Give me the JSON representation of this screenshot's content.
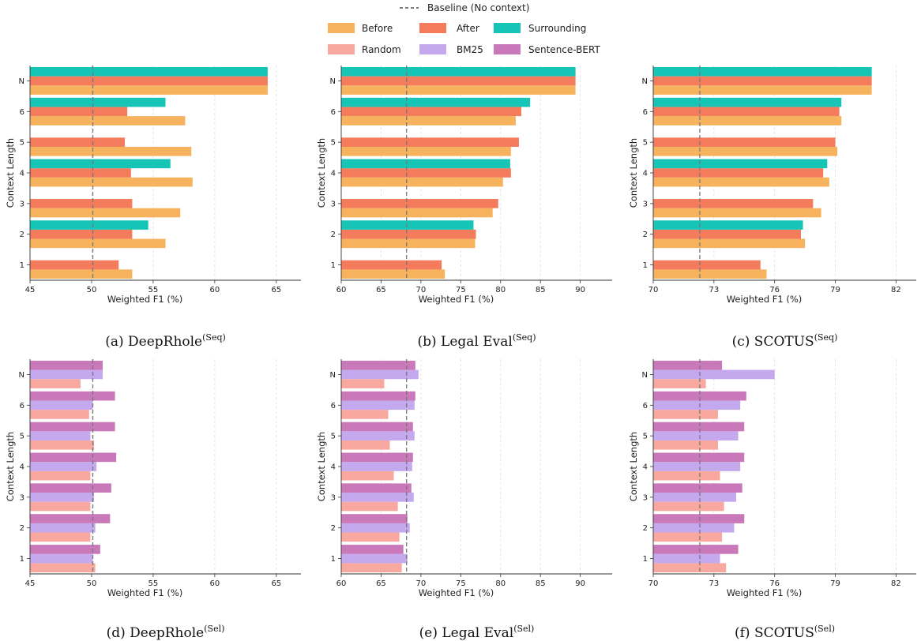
{
  "colors": {
    "before": "#F6B25C",
    "after": "#F47B5C",
    "surrounding": "#16C5B6",
    "random": "#F9A8A0",
    "bm25": "#C4A9EE",
    "sentence_bert": "#C978B9",
    "baseline": "#777777",
    "grid": "#dddddd"
  },
  "legend": {
    "baseline_label": "Baseline (No context)",
    "items": [
      {
        "key": "before",
        "label": "Before"
      },
      {
        "key": "after",
        "label": "After"
      },
      {
        "key": "surrounding",
        "label": "Surrounding"
      },
      {
        "key": "random",
        "label": "Random"
      },
      {
        "key": "bm25",
        "label": "BM25"
      },
      {
        "key": "sentence_bert",
        "label": "Sentence-BERT"
      }
    ]
  },
  "chart_data": [
    {
      "type": "bar",
      "orientation": "horizontal",
      "caption": "(a) DeepRhole",
      "caption_sup": "(Seq)",
      "xlabel": "Weighted F1 (%)",
      "ylabel": "Context Length",
      "xlim": [
        45,
        67
      ],
      "xticks": [
        45,
        50,
        55,
        60,
        65
      ],
      "baseline": 50.1,
      "categories": [
        "1",
        "2",
        "3",
        "4",
        "5",
        "6",
        "N"
      ],
      "series": [
        {
          "key": "before",
          "name": "Before",
          "values": [
            53.3,
            56.0,
            57.2,
            58.2,
            58.1,
            57.6,
            64.3
          ]
        },
        {
          "key": "after",
          "name": "After",
          "values": [
            52.2,
            53.3,
            53.3,
            53.2,
            52.7,
            52.9,
            64.3
          ]
        },
        {
          "key": "surrounding",
          "name": "Surrounding",
          "values": [
            null,
            54.6,
            null,
            56.4,
            null,
            56.0,
            64.3
          ]
        }
      ]
    },
    {
      "type": "bar",
      "orientation": "horizontal",
      "caption": "(b) Legal Eval",
      "caption_sup": "(Seq)",
      "xlabel": "Weighted F1 (%)",
      "ylabel": "Context Length",
      "xlim": [
        60,
        94
      ],
      "xticks": [
        60,
        65,
        70,
        75,
        80,
        85,
        90
      ],
      "baseline": 68.2,
      "categories": [
        "1",
        "2",
        "3",
        "4",
        "5",
        "6",
        "N"
      ],
      "series": [
        {
          "key": "before",
          "name": "Before",
          "values": [
            73.0,
            76.8,
            79.0,
            80.3,
            81.3,
            81.9,
            89.4
          ]
        },
        {
          "key": "after",
          "name": "After",
          "values": [
            72.6,
            76.9,
            79.7,
            81.3,
            82.3,
            82.6,
            89.4
          ]
        },
        {
          "key": "surrounding",
          "name": "Surrounding",
          "values": [
            null,
            76.6,
            null,
            81.2,
            null,
            83.7,
            89.4
          ]
        }
      ]
    },
    {
      "type": "bar",
      "orientation": "horizontal",
      "caption": "(c) SCOTUS",
      "caption_sup": "(Seq)",
      "xlabel": "Weighted F1 (%)",
      "ylabel": "Context Length",
      "xlim": [
        70,
        83
      ],
      "xticks": [
        70,
        73,
        76,
        79,
        82
      ],
      "baseline": 72.3,
      "categories": [
        "1",
        "2",
        "3",
        "4",
        "5",
        "6",
        "N"
      ],
      "series": [
        {
          "key": "before",
          "name": "Before",
          "values": [
            75.6,
            77.5,
            78.3,
            78.7,
            79.1,
            79.3,
            80.8
          ]
        },
        {
          "key": "after",
          "name": "After",
          "values": [
            75.3,
            77.3,
            77.9,
            78.4,
            79.0,
            79.2,
            80.8
          ]
        },
        {
          "key": "surrounding",
          "name": "Surrounding",
          "values": [
            null,
            77.4,
            null,
            78.6,
            null,
            79.3,
            80.8
          ]
        }
      ]
    },
    {
      "type": "bar",
      "orientation": "horizontal",
      "caption": "(d) DeepRhole",
      "caption_sup": "(Sel)",
      "xlabel": "Weighted F1 (%)",
      "ylabel": "Context Length",
      "xlim": [
        45,
        67
      ],
      "xticks": [
        45,
        50,
        55,
        60,
        65
      ],
      "baseline": 50.1,
      "categories": [
        "1",
        "2",
        "3",
        "4",
        "5",
        "6",
        "N"
      ],
      "series": [
        {
          "key": "random",
          "name": "Random",
          "values": [
            50.3,
            49.9,
            49.9,
            49.9,
            50.2,
            49.8,
            49.1
          ]
        },
        {
          "key": "bm25",
          "name": "BM25",
          "values": [
            50.1,
            50.3,
            50.2,
            50.4,
            49.9,
            50.1,
            50.9
          ]
        },
        {
          "key": "sentence_bert",
          "name": "Sentence-BERT",
          "values": [
            50.7,
            51.5,
            51.6,
            52.0,
            51.9,
            51.9,
            50.9
          ]
        }
      ]
    },
    {
      "type": "bar",
      "orientation": "horizontal",
      "caption": "(e) Legal Eval",
      "caption_sup": "(Sel)",
      "xlabel": "Weighted F1 (%)",
      "ylabel": "Context Length",
      "xlim": [
        60,
        94
      ],
      "xticks": [
        60,
        65,
        70,
        75,
        80,
        85,
        90
      ],
      "baseline": 68.2,
      "categories": [
        "1",
        "2",
        "3",
        "4",
        "5",
        "6",
        "N"
      ],
      "series": [
        {
          "key": "random",
          "name": "Random",
          "values": [
            67.6,
            67.3,
            67.1,
            66.6,
            66.1,
            65.9,
            65.4
          ]
        },
        {
          "key": "bm25",
          "name": "BM25",
          "values": [
            68.3,
            68.6,
            69.1,
            68.9,
            69.2,
            69.2,
            69.7
          ]
        },
        {
          "key": "sentence_bert",
          "name": "Sentence-BERT",
          "values": [
            67.8,
            68.3,
            68.8,
            69.0,
            69.0,
            69.3,
            69.3
          ]
        }
      ]
    },
    {
      "type": "bar",
      "orientation": "horizontal",
      "caption": "(f) SCOTUS",
      "caption_sup": "(Sel)",
      "xlabel": "Weighted F1 (%)",
      "ylabel": "Context Length",
      "xlim": [
        70,
        83
      ],
      "xticks": [
        70,
        73,
        76,
        79,
        82
      ],
      "baseline": 72.3,
      "categories": [
        "1",
        "2",
        "3",
        "4",
        "5",
        "6",
        "N"
      ],
      "series": [
        {
          "key": "random",
          "name": "Random",
          "values": [
            73.6,
            73.4,
            73.5,
            73.3,
            73.2,
            73.2,
            72.6
          ]
        },
        {
          "key": "bm25",
          "name": "BM25",
          "values": [
            73.3,
            74.0,
            74.1,
            74.3,
            74.2,
            74.3,
            76.0
          ]
        },
        {
          "key": "sentence_bert",
          "name": "Sentence-BERT",
          "values": [
            74.2,
            74.5,
            74.4,
            74.5,
            74.5,
            74.6,
            73.4
          ]
        }
      ]
    }
  ]
}
